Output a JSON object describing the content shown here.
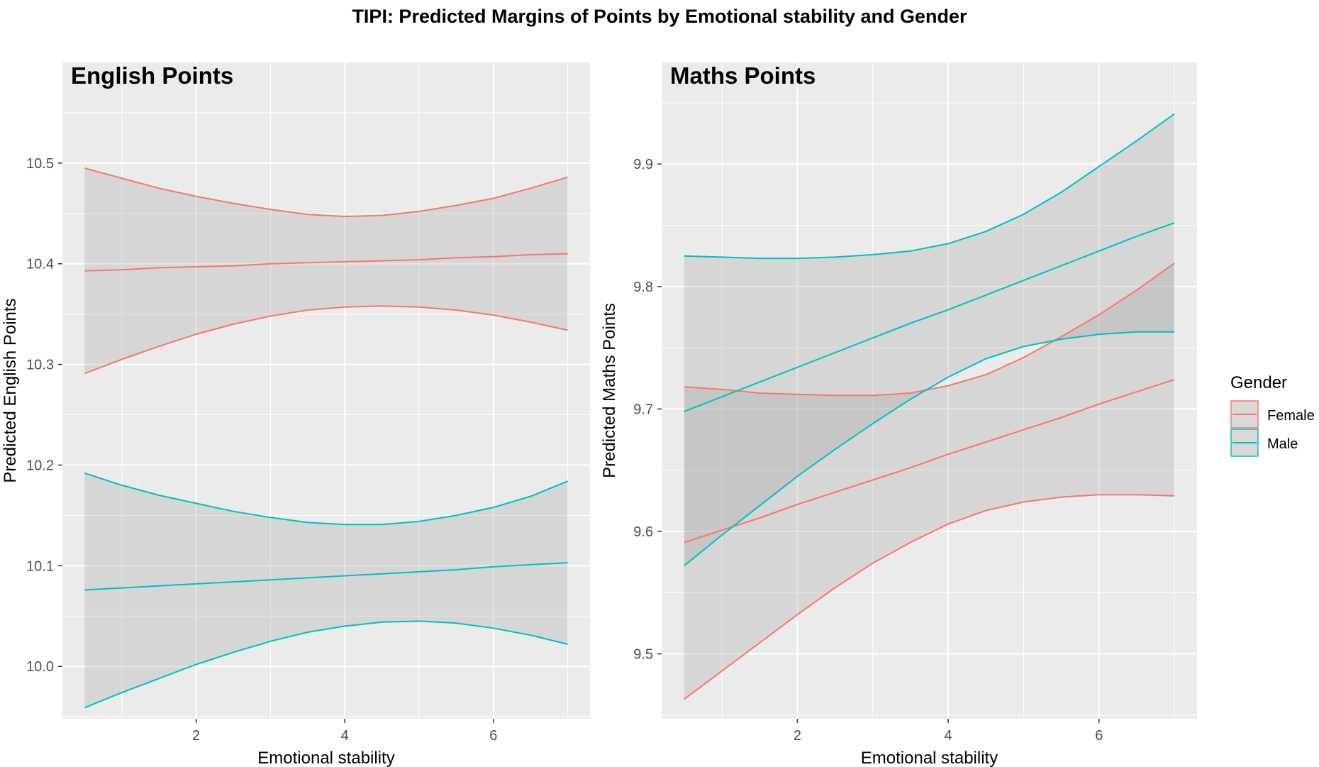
{
  "title": "TIPI: Predicted Margins of Points by Emotional stability and Gender",
  "legend": {
    "title": "Gender",
    "position": "right",
    "items": [
      {
        "label": "Female",
        "color": "#F8766D"
      },
      {
        "label": "Male",
        "color": "#00BFC4"
      }
    ]
  },
  "chart_data": [
    {
      "type": "line",
      "title": "English Points",
      "xlabel": "Emotional stability",
      "ylabel": "Predicted English Points",
      "xlim": [
        0.2,
        7.3
      ],
      "ylim": [
        9.948,
        10.6
      ],
      "xticks": [
        2,
        4,
        6
      ],
      "yticks": [
        10.0,
        10.1,
        10.2,
        10.3,
        10.4,
        10.5
      ],
      "ytick_labels": [
        "10.0",
        "10.1",
        "10.2",
        "10.3",
        "10.4",
        "10.5"
      ],
      "grid": true,
      "x": [
        0.5,
        1,
        1.5,
        2,
        2.5,
        3,
        3.5,
        4,
        4.5,
        5,
        5.5,
        6,
        6.5,
        7
      ],
      "series": [
        {
          "name": "Female",
          "color": "#F8766D",
          "fit": [
            10.393,
            10.394,
            10.396,
            10.397,
            10.398,
            10.4,
            10.401,
            10.402,
            10.403,
            10.404,
            10.406,
            10.407,
            10.409,
            10.41
          ],
          "lower": [
            10.291,
            10.305,
            10.318,
            10.33,
            10.34,
            10.348,
            10.354,
            10.357,
            10.358,
            10.357,
            10.354,
            10.349,
            10.342,
            10.334
          ],
          "upper": [
            10.495,
            10.485,
            10.475,
            10.467,
            10.46,
            10.454,
            10.449,
            10.447,
            10.448,
            10.452,
            10.458,
            10.465,
            10.475,
            10.486
          ]
        },
        {
          "name": "Male",
          "color": "#00BFC4",
          "fit": [
            10.076,
            10.078,
            10.08,
            10.082,
            10.084,
            10.086,
            10.088,
            10.09,
            10.092,
            10.094,
            10.096,
            10.099,
            10.101,
            10.103
          ],
          "lower": [
            9.959,
            9.974,
            9.988,
            10.002,
            10.014,
            10.025,
            10.034,
            10.04,
            10.044,
            10.045,
            10.043,
            10.038,
            10.031,
            10.022
          ],
          "upper": [
            10.192,
            10.18,
            10.17,
            10.162,
            10.154,
            10.148,
            10.143,
            10.141,
            10.141,
            10.144,
            10.15,
            10.158,
            10.169,
            10.184
          ]
        }
      ]
    },
    {
      "type": "line",
      "title": "Maths Points",
      "xlabel": "Emotional stability",
      "ylabel": "Predicted Maths Points",
      "xlim": [
        0.2,
        7.3
      ],
      "ylim": [
        9.447,
        9.983
      ],
      "xticks": [
        2,
        4,
        6
      ],
      "yticks": [
        9.5,
        9.6,
        9.7,
        9.8,
        9.9
      ],
      "ytick_labels": [
        "9.5",
        "9.6",
        "9.7",
        "9.8",
        "9.9"
      ],
      "grid": true,
      "x": [
        0.5,
        1,
        1.5,
        2,
        2.5,
        3,
        3.5,
        4,
        4.5,
        5,
        5.5,
        6,
        6.5,
        7
      ],
      "series": [
        {
          "name": "Female",
          "color": "#F8766D",
          "fit": [
            9.591,
            9.601,
            9.611,
            9.622,
            9.632,
            9.642,
            9.652,
            9.663,
            9.673,
            9.683,
            9.693,
            9.704,
            9.714,
            9.724
          ],
          "lower": [
            9.463,
            9.486,
            9.509,
            9.532,
            9.554,
            9.574,
            9.591,
            9.606,
            9.617,
            9.624,
            9.628,
            9.63,
            9.63,
            9.629
          ],
          "upper": [
            9.718,
            9.716,
            9.713,
            9.712,
            9.711,
            9.711,
            9.713,
            9.719,
            9.728,
            9.742,
            9.759,
            9.777,
            9.797,
            9.819
          ]
        },
        {
          "name": "Male",
          "color": "#00BFC4",
          "fit": [
            9.698,
            9.71,
            9.722,
            9.734,
            9.746,
            9.758,
            9.77,
            9.781,
            9.793,
            9.805,
            9.817,
            9.829,
            9.841,
            9.852
          ],
          "lower": [
            9.572,
            9.597,
            9.621,
            9.645,
            9.667,
            9.688,
            9.708,
            9.726,
            9.741,
            9.751,
            9.757,
            9.761,
            9.763,
            9.763
          ],
          "upper": [
            9.825,
            9.824,
            9.823,
            9.823,
            9.824,
            9.826,
            9.829,
            9.835,
            9.845,
            9.859,
            9.877,
            9.898,
            9.919,
            9.941
          ]
        }
      ]
    }
  ]
}
